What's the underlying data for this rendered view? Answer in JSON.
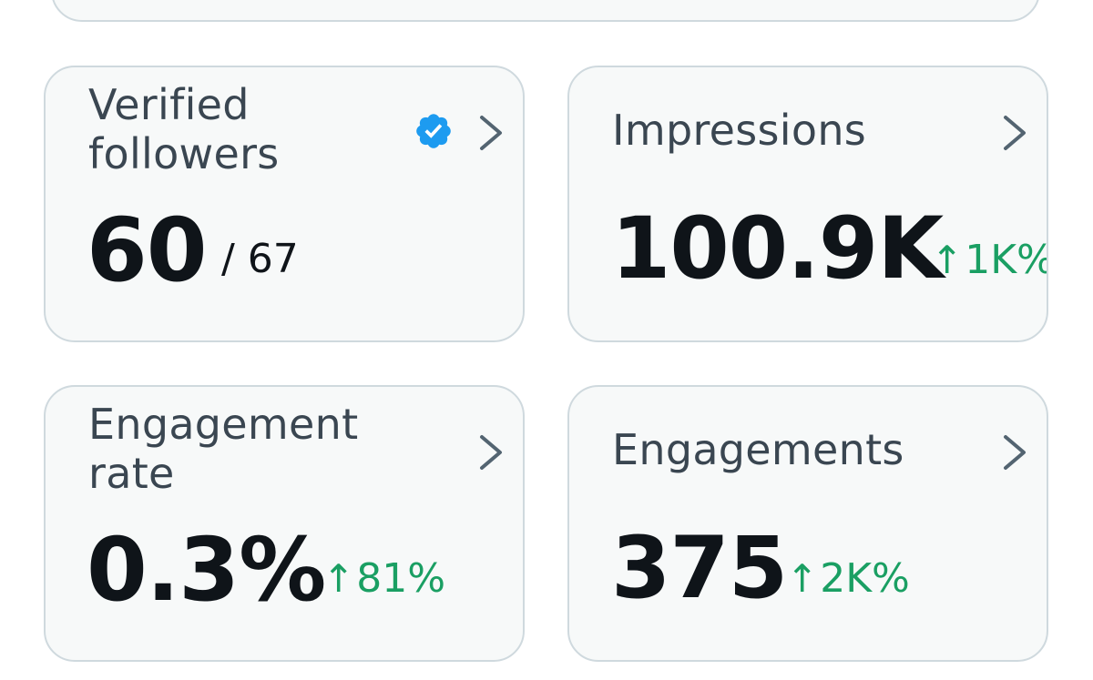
{
  "cards": [
    {
      "label": "Verified followers",
      "value": "60",
      "total": "/ 67",
      "verified_badge": true,
      "icon": "chevron-right-icon"
    },
    {
      "label": "Impressions",
      "value": "100.9K",
      "delta_arrow": "↑",
      "delta": "1K%",
      "icon": "chevron-right-icon"
    },
    {
      "label": "Engagement rate",
      "value": "0.3%",
      "delta_arrow": "↑",
      "delta": "81%",
      "icon": "chevron-right-icon"
    },
    {
      "label": "Engagements",
      "value": "375",
      "delta_arrow": "↑",
      "delta": "2K%",
      "icon": "chevron-right-icon"
    }
  ],
  "colors": {
    "card_background": "#f7f9f9",
    "card_border": "#cfd9de",
    "label": "#3a4651",
    "value": "#0f1419",
    "positive_delta": "#1a9f63",
    "verified_badge": "#1d9bf0",
    "chevron": "#536471"
  }
}
